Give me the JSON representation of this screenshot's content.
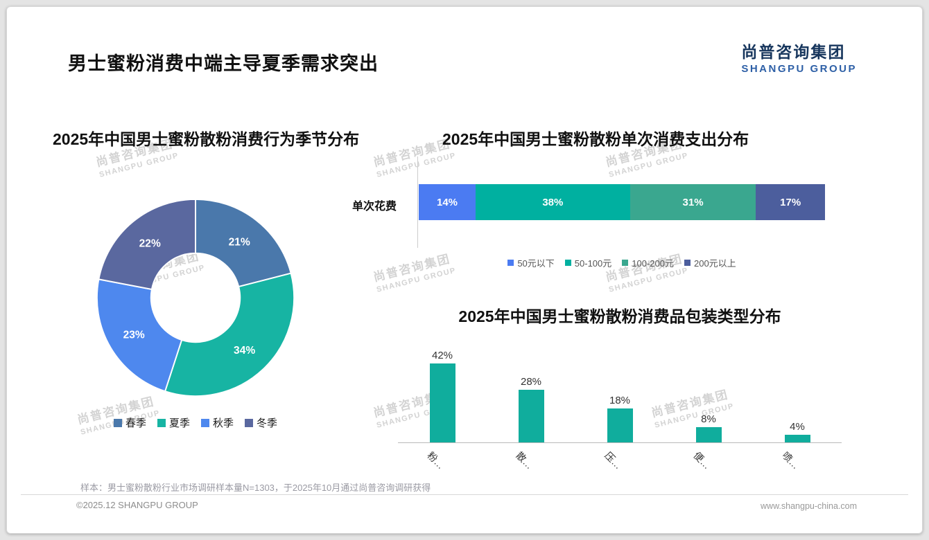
{
  "header": {
    "title": "男士蜜粉消费中端主导夏季需求突出"
  },
  "logo": {
    "cn": "尚普咨询集团",
    "en": "SHANGPU GROUP"
  },
  "watermark": {
    "cn": "尚普咨询集团",
    "en": "SHANGPU GROUP"
  },
  "chart_data": [
    {
      "id": "season-donut",
      "type": "pie",
      "subtype": "donut",
      "title": "2025年中国男士蜜粉散粉消费行为季节分布",
      "categories": [
        "春季",
        "夏季",
        "秋季",
        "冬季"
      ],
      "values": [
        21,
        34,
        23,
        22
      ],
      "labels": [
        "21%",
        "34%",
        "23%",
        "22%"
      ],
      "colors": [
        "#4a78ab",
        "#17b4a3",
        "#4e88ee",
        "#5a689f"
      ],
      "legend_position": "bottom"
    },
    {
      "id": "spend-stacked",
      "type": "bar",
      "subtype": "horizontal-stacked",
      "title": "2025年中国男士蜜粉散粉单次消费支出分布",
      "row_label": "单次花费",
      "categories": [
        "50元以下",
        "50-100元",
        "100-200元",
        "200元以上"
      ],
      "values": [
        14,
        38,
        31,
        17
      ],
      "labels": [
        "14%",
        "38%",
        "31%",
        "17%"
      ],
      "colors": [
        "#4b7bf2",
        "#00b0a0",
        "#3aa78f",
        "#4c5e9d"
      ],
      "legend_position": "bottom"
    },
    {
      "id": "package-bars",
      "type": "bar",
      "title": "2025年中国男士蜜粉散粉消费品包装类型分布",
      "categories": [
        "粉…",
        "散…",
        "压…",
        "便…",
        "喷…"
      ],
      "values": [
        42,
        28,
        18,
        8,
        4
      ],
      "labels": [
        "42%",
        "28%",
        "18%",
        "8%",
        "4%"
      ],
      "color": "#10ad9d",
      "ylim": [
        0,
        45
      ],
      "grid": false,
      "x_label_rotation": 45
    }
  ],
  "footnote": "样本：男士蜜粉散粉行业市场调研样本量N=1303，于2025年10月通过尚普咨询调研获得",
  "footer": {
    "copyright": "©2025.12 SHANGPU GROUP",
    "website": "www.shangpu-china.com"
  }
}
